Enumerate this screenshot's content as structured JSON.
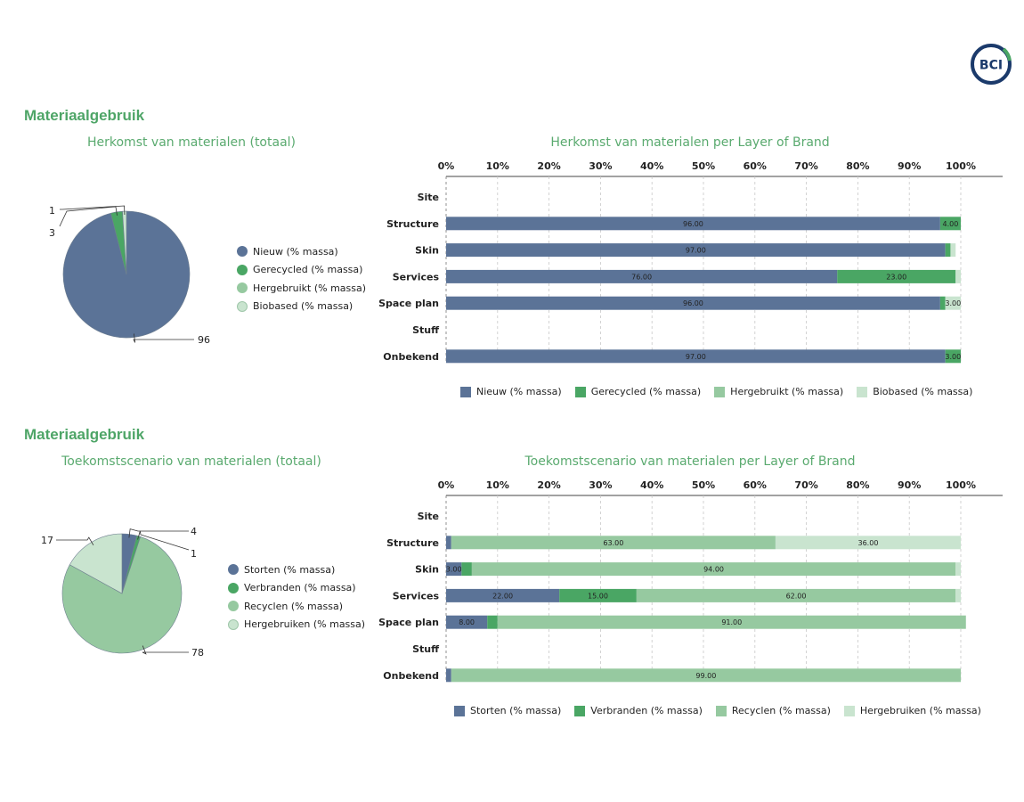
{
  "colors": {
    "accent": "#4ea567",
    "blue": "#5b7397",
    "green": "#4aa664",
    "lightgreen": "#96c9a0",
    "palegreen": "#c9e4cf",
    "logo": "#1b3a6b"
  },
  "logo": {
    "text": "BCI"
  },
  "sections": [
    {
      "title": "Materiaalgebruik"
    },
    {
      "title": "Materiaalgebruik"
    }
  ],
  "chart_data": [
    {
      "type": "pie",
      "title": "Herkomst van materialen (totaal)",
      "labels": [
        "Nieuw (% massa)",
        "Gerecycled (% massa)",
        "Hergebruikt (% massa)",
        "Biobased (% massa)"
      ],
      "values": [
        96,
        3,
        0,
        1
      ],
      "value_labels": [
        "96",
        "3",
        "",
        "1"
      ],
      "colors": [
        "#5b7397",
        "#4aa664",
        "#96c9a0",
        "#c9e4cf"
      ],
      "legend": "right"
    },
    {
      "type": "bar",
      "orientation": "horizontal",
      "stacked": true,
      "title": "Herkomst van materialen per Layer of Brand",
      "categories": [
        "Site",
        "Structure",
        "Skin",
        "Services",
        "Space plan",
        "Stuff",
        "Onbekend"
      ],
      "series": [
        {
          "name": "Nieuw (% massa)",
          "color": "#5b7397",
          "values": [
            0,
            96,
            97,
            76,
            96,
            0,
            97
          ],
          "labels": [
            "",
            "96.00",
            "97.00",
            "76.00",
            "96.00",
            "",
            "97.00"
          ]
        },
        {
          "name": "Gerecycled (% massa)",
          "color": "#4aa664",
          "values": [
            0,
            4,
            1,
            23,
            1,
            0,
            3
          ],
          "labels": [
            "",
            "4.00",
            "",
            "23.00",
            "",
            "",
            "3.00"
          ]
        },
        {
          "name": "Hergebruikt (% massa)",
          "color": "#96c9a0",
          "values": [
            0,
            0,
            0,
            0,
            0,
            0,
            0
          ],
          "labels": [
            "",
            "",
            "",
            "",
            "",
            "",
            ""
          ]
        },
        {
          "name": "Biobased (% massa)",
          "color": "#c9e4cf",
          "values": [
            0,
            0,
            1,
            1,
            3,
            0,
            0
          ],
          "labels": [
            "",
            "",
            "",
            "",
            "3.00",
            "",
            ""
          ]
        }
      ],
      "xticks": [
        "0%",
        "10%",
        "20%",
        "30%",
        "40%",
        "50%",
        "60%",
        "70%",
        "80%",
        "90%",
        "100%"
      ],
      "xlim": [
        0,
        100
      ],
      "grid": true,
      "legend": "bottom"
    },
    {
      "type": "pie",
      "title": "Toekomstscenario van materialen (totaal)",
      "labels": [
        "Storten (% massa)",
        "Verbranden (% massa)",
        "Recyclen (% massa)",
        "Hergebruiken (% massa)"
      ],
      "values": [
        4,
        1,
        78,
        17
      ],
      "value_labels": [
        "4",
        "1",
        "78",
        "17"
      ],
      "colors": [
        "#5b7397",
        "#4aa664",
        "#96c9a0",
        "#c9e4cf"
      ],
      "legend": "right"
    },
    {
      "type": "bar",
      "orientation": "horizontal",
      "stacked": true,
      "title": "Toekomstscenario van materialen per Layer of Brand",
      "categories": [
        "Site",
        "Structure",
        "Skin",
        "Services",
        "Space plan",
        "Stuff",
        "Onbekend"
      ],
      "series": [
        {
          "name": "Storten (% massa)",
          "color": "#5b7397",
          "values": [
            0,
            1,
            3,
            22,
            8,
            0,
            1
          ],
          "labels": [
            "",
            "",
            "3.00",
            "22.00",
            "8.00",
            "",
            ""
          ]
        },
        {
          "name": "Verbranden (% massa)",
          "color": "#4aa664",
          "values": [
            0,
            0,
            2,
            15,
            2,
            0,
            0
          ],
          "labels": [
            "",
            "",
            "",
            "15.00",
            "",
            "",
            ""
          ]
        },
        {
          "name": "Recyclen (% massa)",
          "color": "#96c9a0",
          "values": [
            0,
            63,
            94,
            62,
            91,
            0,
            99
          ],
          "labels": [
            "",
            "63.00",
            "94.00",
            "62.00",
            "91.00",
            "",
            "99.00"
          ]
        },
        {
          "name": "Hergebruiken (% massa)",
          "color": "#c9e4cf",
          "values": [
            0,
            36,
            1,
            1,
            0,
            0,
            0
          ],
          "labels": [
            "",
            "36.00",
            "",
            "",
            "",
            "",
            ""
          ]
        }
      ],
      "xticks": [
        "0%",
        "10%",
        "20%",
        "30%",
        "40%",
        "50%",
        "60%",
        "70%",
        "80%",
        "90%",
        "100%"
      ],
      "xlim": [
        0,
        100
      ],
      "grid": true,
      "legend": "bottom"
    }
  ]
}
